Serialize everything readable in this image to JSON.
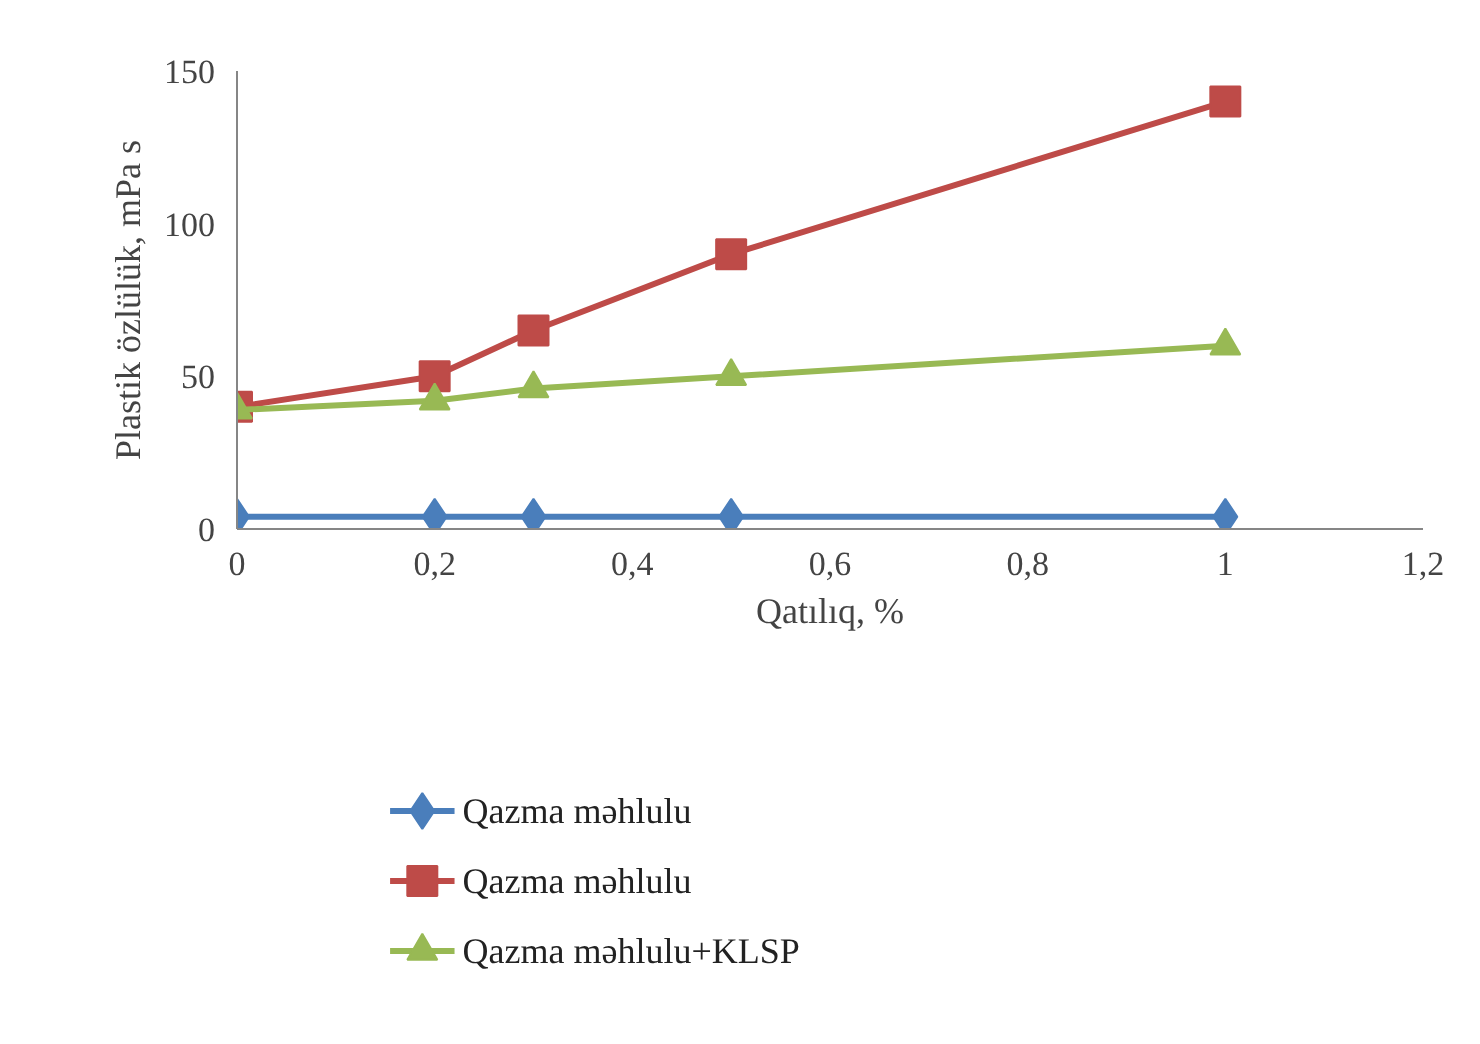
{
  "chart_data": {
    "type": "line",
    "xlabel": "Qatılıq, %",
    "ylabel": "Plastik özlülük, mPa s",
    "x": [
      0,
      0.2,
      0.3,
      0.5,
      1
    ],
    "series": [
      {
        "name": "Qazma məhlulu",
        "color": "#4a7ebb",
        "marker": "diamond",
        "values": [
          4,
          4,
          4,
          4,
          4
        ]
      },
      {
        "name": "Qazma məhlulu",
        "color": "#be4b48",
        "marker": "square",
        "values": [
          40,
          50,
          65,
          90,
          140
        ]
      },
      {
        "name": "Qazma məhlulu+KLSP",
        "color": "#98b954",
        "marker": "triangle",
        "values": [
          39,
          42,
          46,
          50,
          60
        ]
      }
    ],
    "xlim": [
      0,
      1.2
    ],
    "xticks": [
      0,
      {
        "value": 0.2,
        "label": "0,2"
      },
      {
        "value": 0.4,
        "label": "0,4"
      },
      {
        "value": 0.6,
        "label": "0,6"
      },
      {
        "value": 0.8,
        "label": "0,8"
      },
      1,
      {
        "value": 1.2,
        "label": "1,2"
      }
    ],
    "ylim": [
      0,
      150
    ],
    "yticks": [
      0,
      50,
      100,
      150
    ],
    "grid": false,
    "legend": "bottom",
    "line_style": "solid"
  }
}
